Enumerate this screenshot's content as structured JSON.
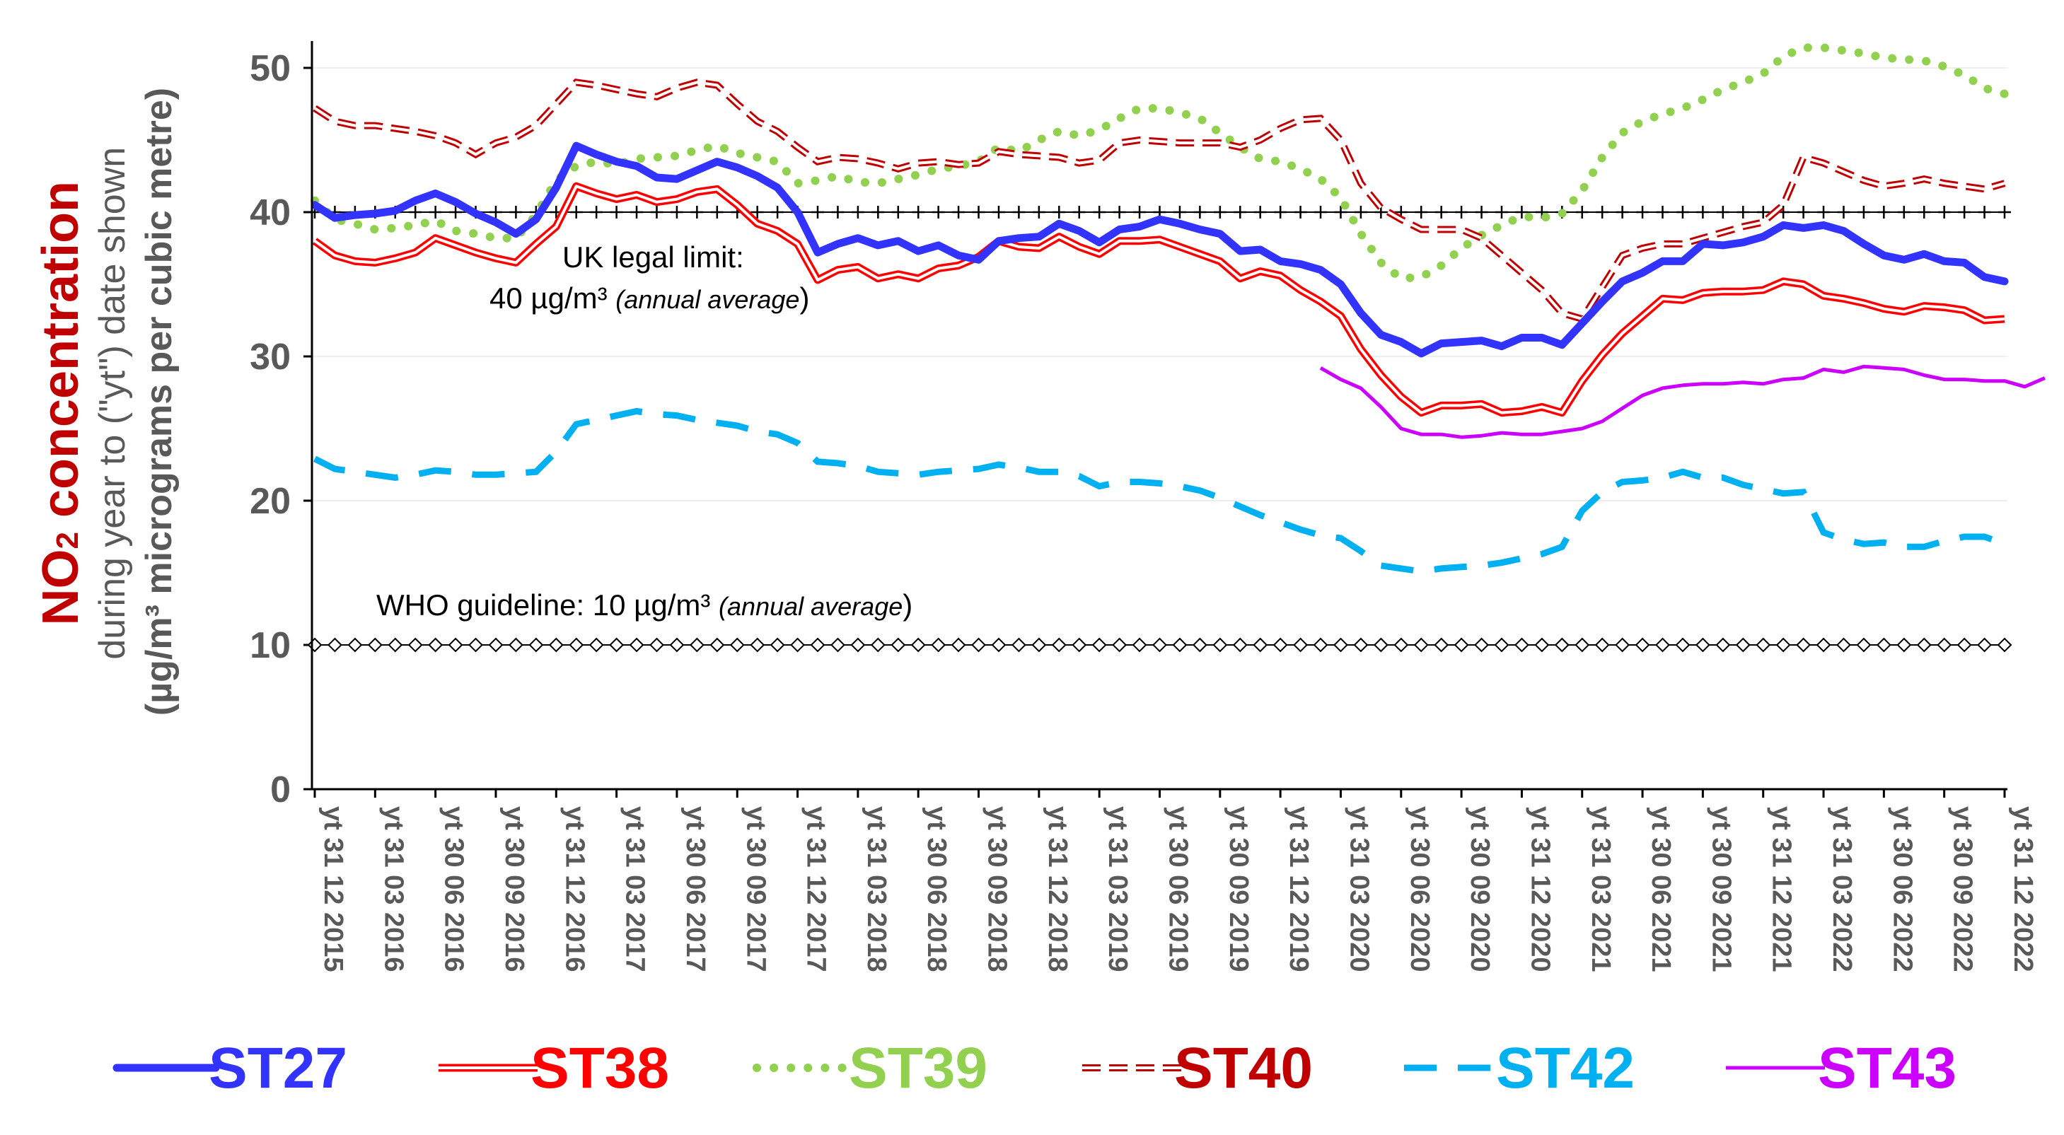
{
  "chart_data": {
    "type": "line",
    "ylabel": {
      "title_main": "NO",
      "title_sub": "2",
      "title_rest": " concentration",
      "line2": "during year to (\"yt\") date shown",
      "line3": "(µg/m³ micrograms per cubic metre)"
    },
    "ylim": [
      0,
      52
    ],
    "yticks": [
      0,
      10,
      20,
      30,
      40,
      50
    ],
    "grid": "horizontal",
    "xtick_labels": [
      "yt 31 12 2015",
      "yt 31 03 2016",
      "yt 30 06 2016",
      "yt 30 09 2016",
      "yt 31 12 2016",
      "yt 31 03 2017",
      "yt 30 06 2017",
      "yt 30 09 2017",
      "yt 31 12 2017",
      "yt 31 03 2018",
      "yt 30 06 2018",
      "yt 30 09 2018",
      "yt 31 12 2018",
      "yt 31 03 2019",
      "yt 30 06 2019",
      "yt 30 09 2019",
      "yt 31 12 2019",
      "yt 31 03 2020",
      "yt 30 06 2020",
      "yt 30 09 2020",
      "yt 31 12 2020",
      "yt 31 03 2021",
      "yt 30 06 2021",
      "yt 30 09 2021",
      "yt 31 12 2021",
      "yt 31 03 2022",
      "yt 30 06 2022",
      "yt 30 09 2022",
      "yt 31 12 2022"
    ],
    "reference_lines": [
      {
        "value": 40,
        "label": "UK legal limit:",
        "label2": "40 µg/m³ ",
        "label2_it": "(annual average",
        "label2_end": ")",
        "marker": "plus",
        "color": "#000000"
      },
      {
        "value": 10,
        "label": "WHO guideline:  10 µg/m³ ",
        "label_it": "(annual average",
        "label_end": ")",
        "marker": "diamond",
        "color": "#000000"
      }
    ],
    "legend_position": "bottom",
    "series": [
      {
        "name": "ST27",
        "color": "#3333FF",
        "style": "thick",
        "values": [
          40.5,
          39.6,
          39.8,
          39.9,
          40.1,
          40.8,
          41.3,
          40.7,
          39.9,
          39.3,
          38.5,
          39.5,
          41.7,
          44.6,
          44.0,
          43.5,
          43.2,
          42.4,
          42.3,
          42.9,
          43.5,
          43.1,
          42.5,
          41.7,
          40.0,
          37.2,
          37.8,
          38.2,
          37.7,
          38.0,
          37.3,
          37.7,
          37.0,
          36.7,
          38.0,
          38.2,
          38.3,
          39.2,
          38.7,
          37.9,
          38.8,
          39.0,
          39.5,
          39.2,
          38.8,
          38.5,
          37.3,
          37.4,
          36.6,
          36.4,
          36.0,
          35.0,
          33.0,
          31.5,
          31.0,
          30.2,
          30.9,
          31.0,
          31.1,
          30.7,
          31.3,
          31.3,
          30.8,
          32.3,
          33.8,
          35.2,
          35.8,
          36.6,
          36.6,
          37.8,
          37.7,
          37.9,
          38.3,
          39.1,
          38.9,
          39.1,
          38.7,
          37.8,
          37.0,
          36.7,
          37.1,
          36.6,
          36.5,
          35.5,
          35.2
        ]
      },
      {
        "name": "ST38",
        "color": "#FF0000",
        "style": "double",
        "values": [
          38.0,
          37.0,
          36.6,
          36.5,
          36.8,
          37.2,
          38.2,
          37.7,
          37.2,
          36.8,
          36.5,
          37.8,
          39.0,
          41.8,
          41.3,
          40.9,
          41.2,
          40.7,
          40.9,
          41.4,
          41.6,
          40.5,
          39.2,
          38.7,
          37.8,
          35.3,
          36.0,
          36.2,
          35.4,
          35.7,
          35.4,
          36.1,
          36.3,
          36.9,
          38.0,
          37.6,
          37.5,
          38.3,
          37.6,
          37.1,
          38.0,
          38.0,
          38.1,
          37.6,
          37.1,
          36.6,
          35.4,
          35.9,
          35.6,
          34.6,
          33.8,
          32.8,
          30.5,
          28.7,
          27.2,
          26.1,
          26.6,
          26.6,
          26.7,
          26.1,
          26.2,
          26.5,
          26.1,
          28.3,
          30.1,
          31.6,
          32.8,
          34.0,
          33.9,
          34.4,
          34.5,
          34.5,
          34.6,
          35.2,
          35.0,
          34.2,
          34.0,
          33.7,
          33.3,
          33.1,
          33.5,
          33.4,
          33.2,
          32.5,
          32.6
        ]
      },
      {
        "name": "ST39",
        "color": "#92D050",
        "style": "dotted",
        "values": [
          40.8,
          39.5,
          39.2,
          38.8,
          38.9,
          39.1,
          39.4,
          38.7,
          38.5,
          38.2,
          38.2,
          39.8,
          42.2,
          43.2,
          43.5,
          43.3,
          43.7,
          43.8,
          43.9,
          44.3,
          44.6,
          44.1,
          43.8,
          43.5,
          42.0,
          42.2,
          42.5,
          42.1,
          42.0,
          42.3,
          42.6,
          43.0,
          43.2,
          43.5,
          44.5,
          44.2,
          45.0,
          45.6,
          45.3,
          45.7,
          46.5,
          47.2,
          47.2,
          46.9,
          46.5,
          45.5,
          44.5,
          43.7,
          43.5,
          43.0,
          42.3,
          41.0,
          38.5,
          36.5,
          35.4,
          35.5,
          36.3,
          37.5,
          38.4,
          39.1,
          39.7,
          39.6,
          39.9,
          41.5,
          43.8,
          45.5,
          46.3,
          46.8,
          47.2,
          47.8,
          48.5,
          49.0,
          49.6,
          50.8,
          51.4,
          51.4,
          51.2,
          51.0,
          50.7,
          50.6,
          50.5,
          50.1,
          49.5,
          48.6,
          48.2
        ]
      },
      {
        "name": "ST40",
        "color": "#C00000",
        "style": "dashed-double",
        "values": [
          47.2,
          46.3,
          46.0,
          46.0,
          45.8,
          45.6,
          45.3,
          44.8,
          44.0,
          44.8,
          45.2,
          46.0,
          47.5,
          49.0,
          48.8,
          48.5,
          48.2,
          48.0,
          48.6,
          49.0,
          48.8,
          47.5,
          46.3,
          45.6,
          44.5,
          43.5,
          43.8,
          43.7,
          43.4,
          43.0,
          43.4,
          43.5,
          43.3,
          43.4,
          44.2,
          44.0,
          43.9,
          43.8,
          43.4,
          43.6,
          44.8,
          45.0,
          44.9,
          44.8,
          44.8,
          44.8,
          44.5,
          45.0,
          45.8,
          46.4,
          46.5,
          45.0,
          42.0,
          40.3,
          39.5,
          38.8,
          38.8,
          38.8,
          38.2,
          37.0,
          35.8,
          34.6,
          33.0,
          32.6,
          34.8,
          37.0,
          37.5,
          37.8,
          37.8,
          38.2,
          38.6,
          39.0,
          39.3,
          40.5,
          43.8,
          43.4,
          42.8,
          42.2,
          41.8,
          42.0,
          42.3,
          42.0,
          41.8,
          41.6,
          42.0
        ]
      },
      {
        "name": "ST42",
        "color": "#00B0F0",
        "style": "dashed",
        "values": [
          22.9,
          22.2,
          22.0,
          21.8,
          21.6,
          21.8,
          22.1,
          22.0,
          21.8,
          21.8,
          21.9,
          22.0,
          23.4,
          25.3,
          25.6,
          25.9,
          26.2,
          26.0,
          25.9,
          25.6,
          25.4,
          25.2,
          24.8,
          24.6,
          24.0,
          22.7,
          22.6,
          22.4,
          22.0,
          21.9,
          21.8,
          22.0,
          22.1,
          22.2,
          22.5,
          22.3,
          22.0,
          22.0,
          21.7,
          21.0,
          21.3,
          21.3,
          21.2,
          21.0,
          20.7,
          20.2,
          19.6,
          19.0,
          18.5,
          18.0,
          17.6,
          17.4,
          16.5,
          15.5,
          15.3,
          15.1,
          15.3,
          15.4,
          15.5,
          15.7,
          16.0,
          16.3,
          16.8,
          19.3,
          20.6,
          21.3,
          21.4,
          21.6,
          22.0,
          21.6,
          21.6,
          21.1,
          20.8,
          20.5,
          20.6,
          17.8,
          17.3,
          17.0,
          17.1,
          16.8,
          16.8,
          17.2,
          17.5,
          17.5,
          17.0
        ]
      },
      {
        "name": "ST43",
        "color": "#CC00FF",
        "style": "thin",
        "start_index": 50,
        "values": [
          29.2,
          28.4,
          27.8,
          26.5,
          25.0,
          24.6,
          24.6,
          24.4,
          24.5,
          24.7,
          24.6,
          24.6,
          24.8,
          25.0,
          25.5,
          26.4,
          27.3,
          27.8,
          28.0,
          28.1,
          28.1,
          28.2,
          28.1,
          28.4,
          28.5,
          29.1,
          28.9,
          29.3,
          29.2,
          29.1,
          28.7,
          28.4,
          28.4,
          28.3,
          28.3,
          27.9,
          28.5
        ]
      }
    ]
  }
}
